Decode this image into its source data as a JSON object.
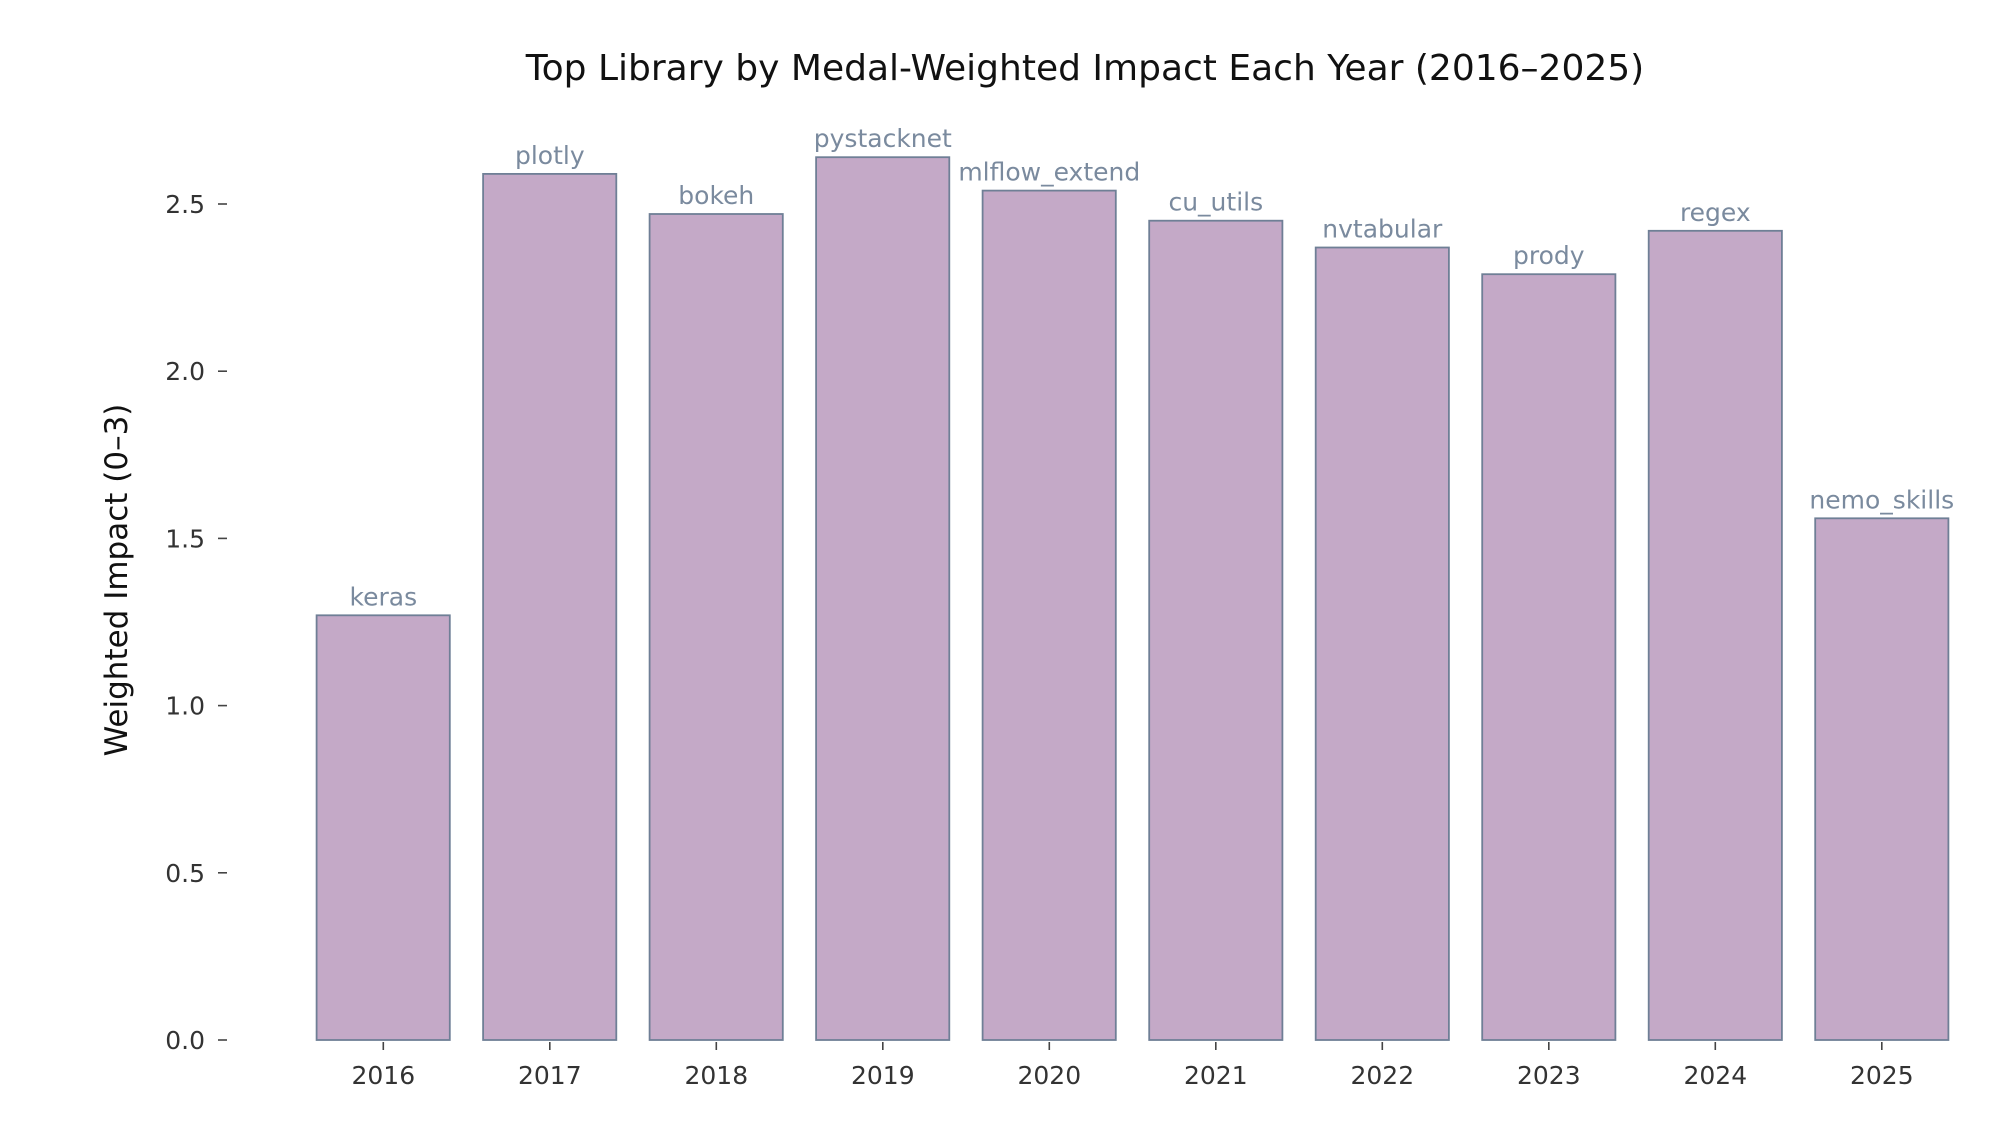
{
  "chart_data": {
    "type": "bar",
    "title": "Top Library by Medal-Weighted Impact Each Year (2016–2025)",
    "xlabel": "",
    "ylabel": "Weighted Impact (0–3)",
    "ylim": [
      0,
      2.7
    ],
    "yticks": [
      "0.0",
      "0.5",
      "1.0",
      "1.5",
      "2.0",
      "2.5"
    ],
    "categories": [
      "2016",
      "2017",
      "2018",
      "2019",
      "2020",
      "2021",
      "2022",
      "2023",
      "2024",
      "2025"
    ],
    "values": [
      1.27,
      2.59,
      2.47,
      2.64,
      2.54,
      2.45,
      2.37,
      2.29,
      2.42,
      1.56
    ],
    "bar_labels": [
      "keras",
      "plotly",
      "bokeh",
      "pystacknet",
      "mlflow_extend",
      "cu_utils",
      "nvtabular",
      "prody",
      "regex",
      "nemo_skills"
    ],
    "grid": false,
    "legend": "none",
    "colors": {
      "bar_fill": "#c4a9c7",
      "bar_edge": "#6f7f96",
      "label": "#7a8a9e"
    }
  }
}
